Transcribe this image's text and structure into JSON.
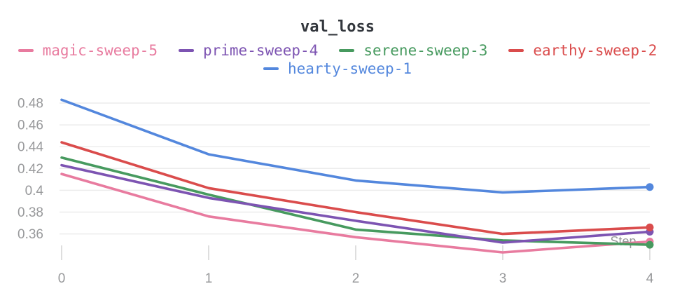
{
  "title": "val_loss",
  "axis": {
    "x_label": "Step",
    "x_tick_labels": [
      "0",
      "1",
      "2",
      "3",
      "4"
    ],
    "y_tick_labels": [
      "0.48",
      "0.46",
      "0.44",
      "0.42",
      "0.4",
      "0.38",
      "0.36"
    ]
  },
  "colors": {
    "title_text": "#33373d",
    "axis_text": "#98999b",
    "gridline": "#ececec",
    "tick_mark": "#dedede",
    "background": "#ffffff"
  },
  "chart_data": {
    "type": "line",
    "title": "val_loss",
    "xlabel": "Step",
    "ylabel": "",
    "x": [
      0,
      1,
      2,
      3,
      4
    ],
    "series": [
      {
        "name": "magic-sweep-5",
        "color": "#E87B9F",
        "values": [
          0.415,
          0.376,
          0.357,
          0.343,
          0.353
        ]
      },
      {
        "name": "prime-sweep-4",
        "color": "#7D54B2",
        "values": [
          0.423,
          0.393,
          0.372,
          0.352,
          0.362
        ]
      },
      {
        "name": "serene-sweep-3",
        "color": "#479A5F",
        "values": [
          0.43,
          0.396,
          0.364,
          0.354,
          0.35
        ]
      },
      {
        "name": "earthy-sweep-2",
        "color": "#DA4C4C",
        "values": [
          0.444,
          0.402,
          0.38,
          0.36,
          0.366
        ]
      },
      {
        "name": "hearty-sweep-1",
        "color": "#5387DD",
        "values": [
          0.483,
          0.433,
          0.409,
          0.398,
          0.403
        ]
      }
    ],
    "y_ticks": [
      0.48,
      0.46,
      0.44,
      0.42,
      0.4,
      0.38,
      0.36
    ],
    "xlim": [
      0,
      4
    ],
    "ylim": [
      0.335,
      0.49
    ],
    "grid": "horizontal",
    "legend_position": "top",
    "legend_rows": [
      4,
      1
    ],
    "draw_order": [
      0,
      2,
      1,
      3,
      4
    ],
    "end_markers": true
  }
}
